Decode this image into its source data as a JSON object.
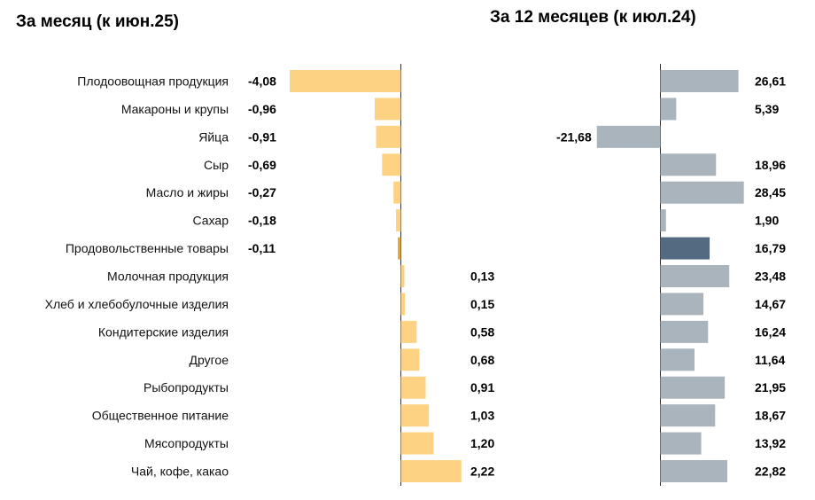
{
  "chart_data": [
    {
      "type": "bar",
      "orientation": "horizontal",
      "title": "За месяц (к июн.25)",
      "categories": [
        "Плодоовощная продукция",
        "Макароны и крупы",
        "Яйца",
        "Сыр",
        "Масло и жиры",
        "Сахар",
        "Продовольственные товары",
        "Молочная продукция",
        "Хлеб и хлебобулочные изделия",
        "Кондитерские изделия",
        "Другое",
        "Рыбопродукты",
        "Общественное питание",
        "Мясопродукты",
        "Чай, кофе, какао"
      ],
      "values": [
        -4.08,
        -0.96,
        -0.91,
        -0.69,
        -0.27,
        -0.18,
        -0.11,
        0.13,
        0.15,
        0.58,
        0.68,
        0.91,
        1.03,
        1.2,
        2.22
      ],
      "value_labels": [
        "-4,08",
        "-0,96",
        "-0,91",
        "-0,69",
        "-0,27",
        "-0,18",
        "-0,11",
        "0,13",
        "0,15",
        "0,58",
        "0,68",
        "0,91",
        "1,03",
        "1,20",
        "2,22"
      ],
      "highlight_category": "Продовольственные товары",
      "colors": {
        "bar": "#FDD383",
        "highlight": "#E8A530"
      }
    },
    {
      "type": "bar",
      "orientation": "horizontal",
      "title": "За 12 месяцев (к июл.24)",
      "categories": [
        "Плодоовощная продукция",
        "Макароны и крупы",
        "Яйца",
        "Сыр",
        "Масло и жиры",
        "Сахар",
        "Продовольственные товары",
        "Молочная продукция",
        "Хлеб и хлебобулочные изделия",
        "Кондитерские изделия",
        "Другое",
        "Рыбопродукты",
        "Общественное питание",
        "Мясопродукты",
        "Чай, кофе, какао"
      ],
      "values": [
        26.61,
        5.39,
        -21.68,
        18.96,
        28.45,
        1.9,
        16.79,
        23.48,
        14.67,
        16.24,
        11.64,
        21.95,
        18.67,
        13.92,
        22.82
      ],
      "value_labels": [
        "26,61",
        "5,39",
        "-21,68",
        "18,96",
        "28,45",
        "1,90",
        "16,79",
        "23,48",
        "14,67",
        "16,24",
        "11,64",
        "21,95",
        "18,67",
        "13,92",
        "22,82"
      ],
      "highlight_category": "Продовольственные товары",
      "colors": {
        "bar": "#A9B4BD",
        "highlight": "#546A80"
      }
    }
  ]
}
